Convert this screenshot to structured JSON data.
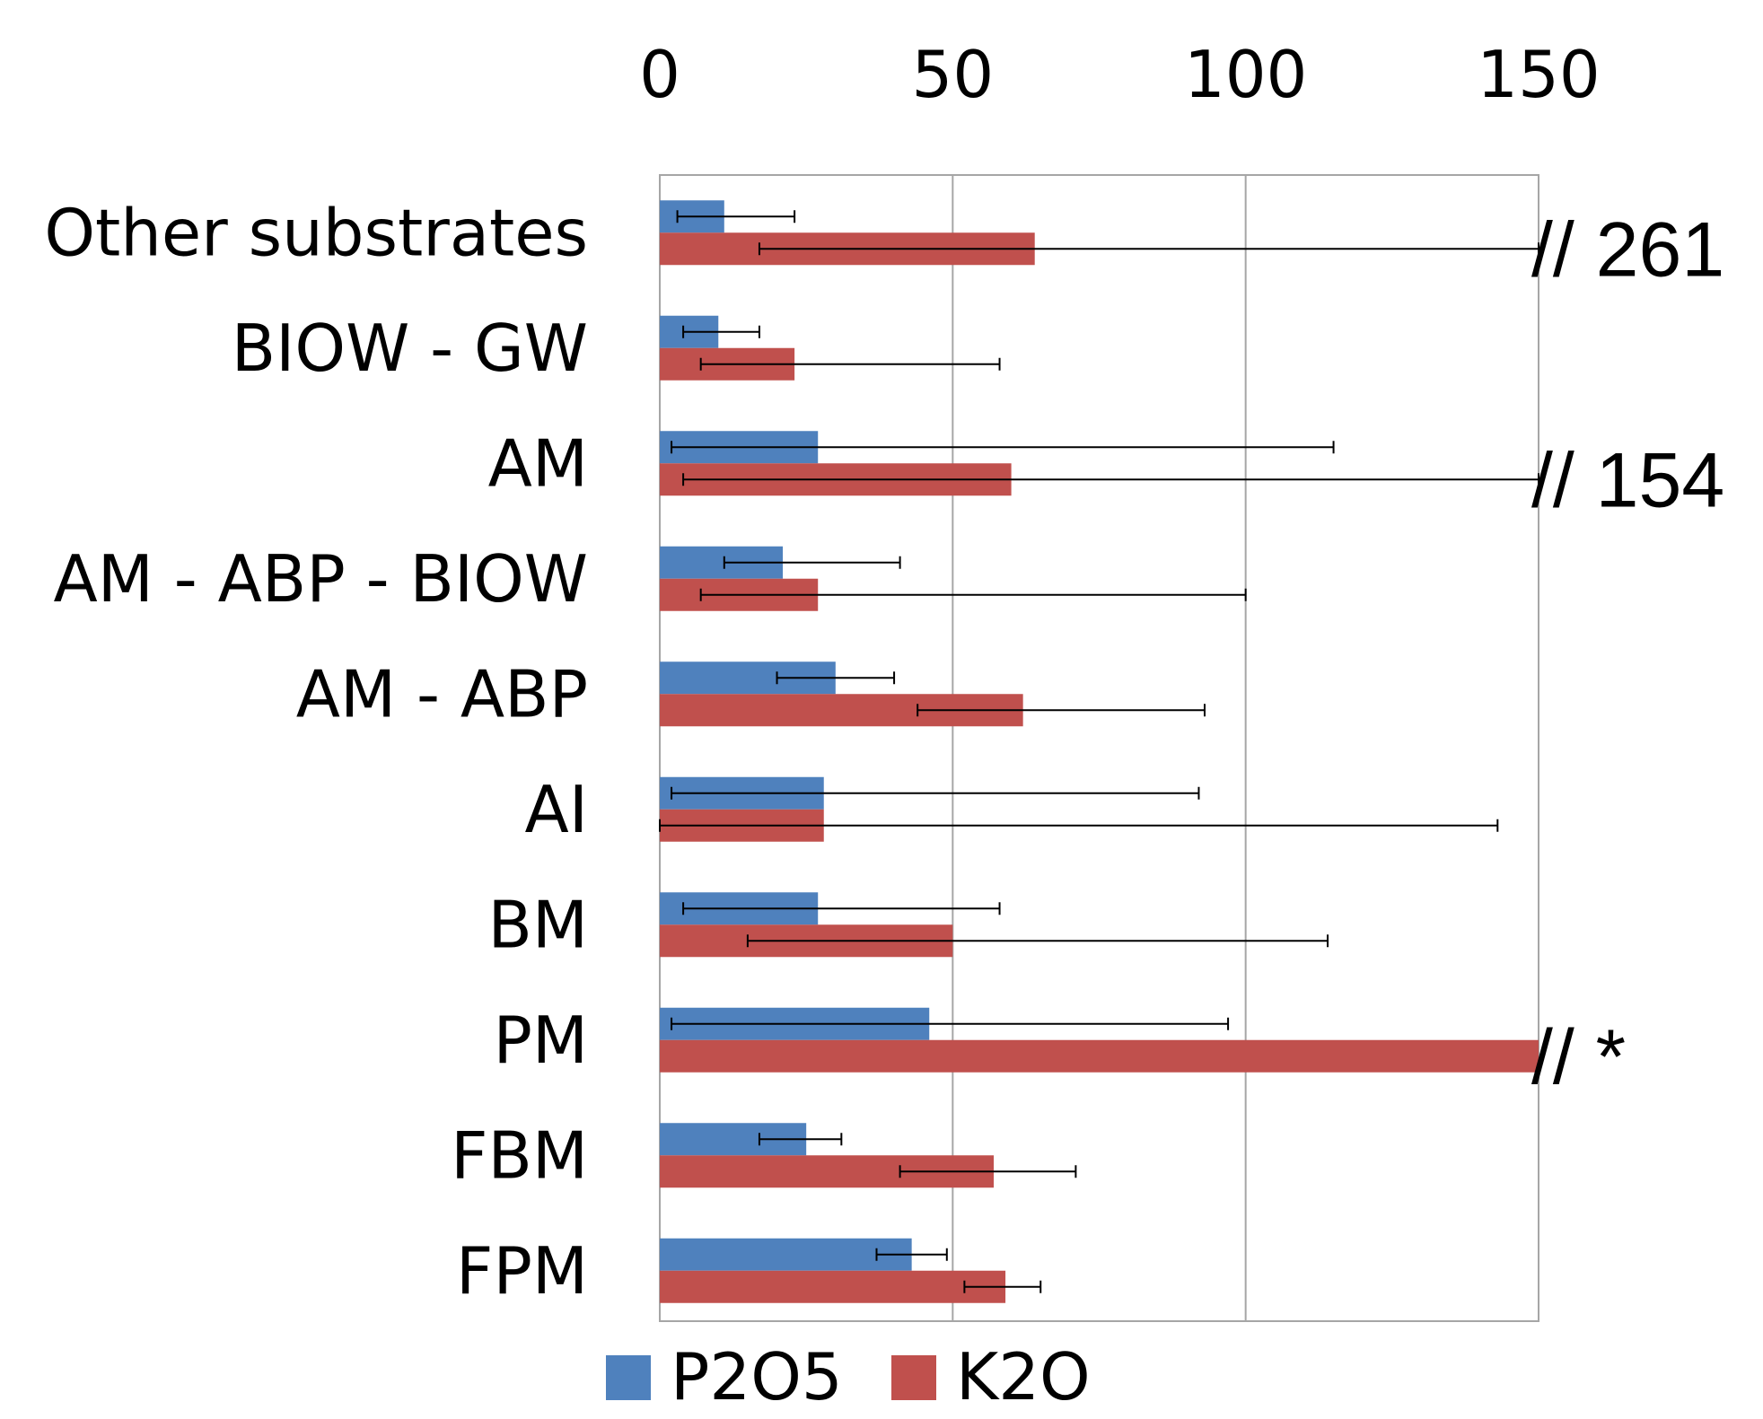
{
  "chart_data": {
    "type": "bar",
    "orientation": "horizontal",
    "x_axis_position": "top",
    "grid": true,
    "legend_position": "bottom",
    "xlim": [
      0,
      150
    ],
    "xticks": [
      "0",
      "50",
      "100",
      "150"
    ],
    "categories": [
      "Other substrates",
      "BIOW - GW",
      "AM",
      "AM - ABP - BIOW",
      "AM - ABP",
      "AI",
      "BM",
      "PM",
      "FBM",
      "FPM"
    ],
    "series": [
      {
        "name": "P2O5",
        "color": "#4F81BD",
        "values": [
          11,
          10,
          27,
          21,
          30,
          28,
          27,
          46,
          25,
          43
        ],
        "error_low": [
          3,
          4,
          2,
          11,
          20,
          2,
          4,
          2,
          17,
          37
        ],
        "error_high": [
          23,
          17,
          115,
          41,
          40,
          92,
          58,
          97,
          31,
          49
        ]
      },
      {
        "name": "K2O",
        "color": "#C0504D",
        "values": [
          64,
          23,
          60,
          27,
          62,
          28,
          50,
          150,
          57,
          59
        ],
        "error_low": [
          17,
          7,
          4,
          7,
          44,
          0,
          15,
          null,
          41,
          52
        ],
        "error_high": [
          150,
          58,
          150,
          100,
          93,
          143,
          114,
          null,
          71,
          65
        ]
      }
    ],
    "annotations": [
      {
        "category": "Other substrates",
        "series": "K2O",
        "text": "// 261"
      },
      {
        "category": "AM",
        "series": "K2O",
        "text": "// 154"
      },
      {
        "category": "PM",
        "series": "K2O",
        "text": "// *"
      }
    ]
  }
}
